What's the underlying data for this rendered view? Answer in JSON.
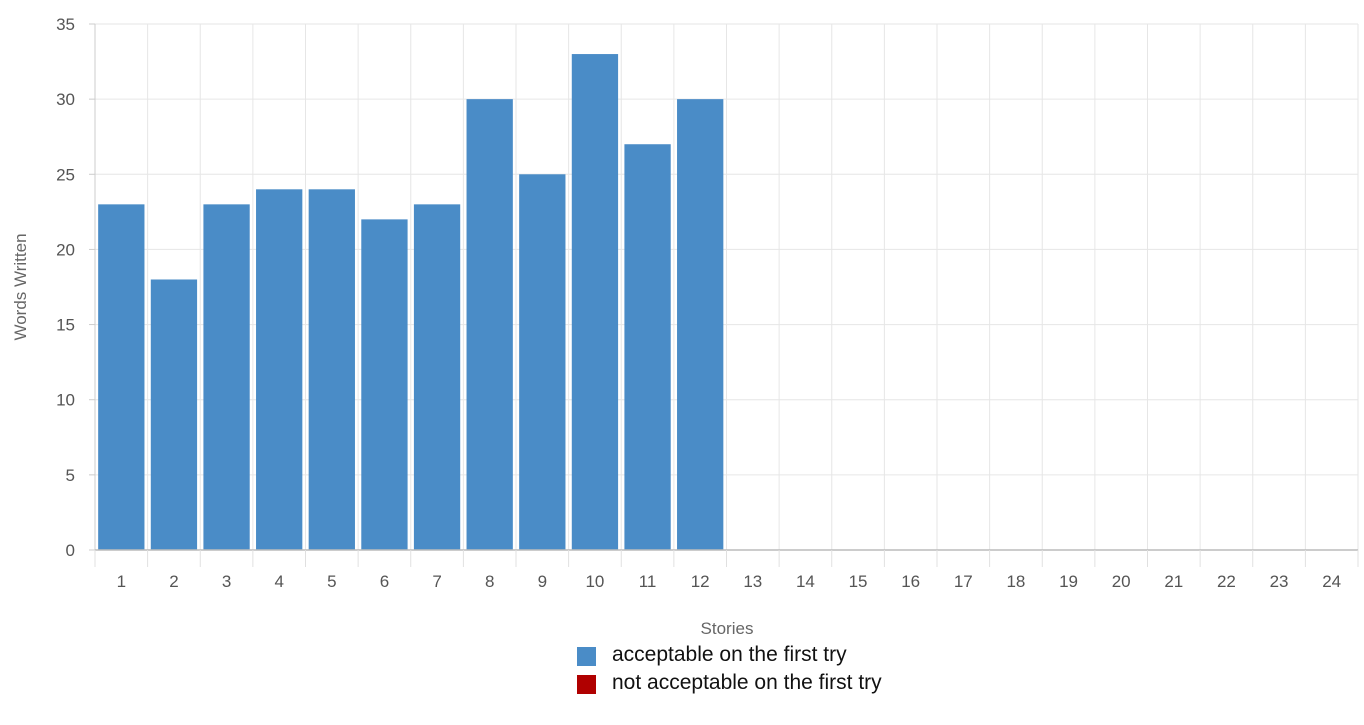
{
  "chart_data": {
    "type": "bar",
    "xlabel": "Stories",
    "ylabel": "Words Written",
    "ylim": [
      0,
      35
    ],
    "yticks": [
      0,
      5,
      10,
      15,
      20,
      25,
      30,
      35
    ],
    "categories": [
      "1",
      "2",
      "3",
      "4",
      "5",
      "6",
      "7",
      "8",
      "9",
      "10",
      "11",
      "12",
      "13",
      "14",
      "15",
      "16",
      "17",
      "18",
      "19",
      "20",
      "21",
      "22",
      "23",
      "24"
    ],
    "series": [
      {
        "name": "acceptable on the first try",
        "color": "#4a8cc7",
        "values": [
          23,
          18,
          23,
          24,
          24,
          22,
          23,
          30,
          25,
          33,
          27,
          30,
          null,
          null,
          null,
          null,
          null,
          null,
          null,
          null,
          null,
          null,
          null,
          null
        ]
      },
      {
        "name": "not acceptable on the first try",
        "color": "#b00000",
        "values": [
          null,
          null,
          null,
          null,
          null,
          null,
          null,
          null,
          null,
          null,
          null,
          null,
          null,
          null,
          null,
          null,
          null,
          null,
          null,
          null,
          null,
          null,
          null,
          null
        ]
      }
    ],
    "grid": true,
    "legend_position": "bottom-center"
  }
}
